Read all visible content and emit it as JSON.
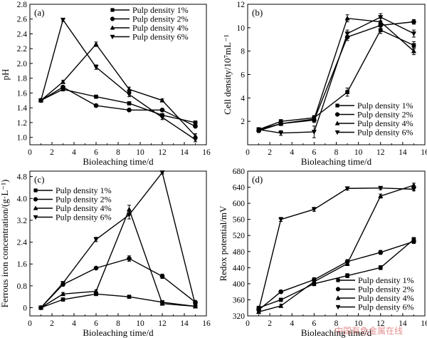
{
  "watermark": "中国有色金属在线",
  "chart_data": [
    {
      "id": "a",
      "type": "line",
      "panel_label": "(a)",
      "xlabel": "Bioleaching time/d",
      "ylabel": "pH",
      "xlim": [
        0,
        16
      ],
      "ylim": [
        0.9,
        2.8
      ],
      "xticks": [
        0,
        2,
        4,
        6,
        8,
        10,
        12,
        14,
        16
      ],
      "yticks": [
        1.0,
        1.2,
        1.4,
        1.6,
        1.8,
        2.0,
        2.2,
        2.4,
        2.6,
        2.8
      ],
      "ytick_labels": [
        "1.0",
        "1.2",
        "1.4",
        "1.6",
        "1.8",
        "2.0",
        "2.2",
        "2.4",
        "2.6",
        "2.8"
      ],
      "legend_position": "top-right",
      "x": [
        1,
        3,
        6,
        9,
        12,
        15
      ],
      "series": [
        {
          "name": "Pulp density 1%",
          "marker": "square",
          "values": [
            1.5,
            1.65,
            1.55,
            1.46,
            1.3,
            1.2
          ],
          "err": [
            0.02,
            0.02,
            0.02,
            0.02,
            0.02,
            0.02
          ]
        },
        {
          "name": "Pulp density 2%",
          "marker": "circle",
          "values": [
            1.5,
            1.68,
            1.43,
            1.37,
            1.37,
            1.15
          ],
          "err": [
            0.02,
            0.02,
            0.02,
            0.02,
            0.02,
            0.02
          ]
        },
        {
          "name": "Pulp density 4%",
          "marker": "triangle-up",
          "values": [
            1.5,
            1.75,
            2.26,
            1.65,
            1.5,
            1.02
          ],
          "err": [
            0.02,
            0.02,
            0.03,
            0.03,
            0.02,
            0.03
          ]
        },
        {
          "name": "Pulp density 6%",
          "marker": "triangle-down",
          "values": [
            1.5,
            2.59,
            1.95,
            1.58,
            1.27,
            0.97
          ],
          "err": [
            0.02,
            0.02,
            0.03,
            0.03,
            0.03,
            0.03
          ]
        }
      ]
    },
    {
      "id": "b",
      "type": "line",
      "panel_label": "(b)",
      "xlabel": "Bioleaching time/d",
      "ylabel": "Cell density/10⁷mL⁻¹",
      "xlim": [
        0,
        16
      ],
      "ylim": [
        0,
        12
      ],
      "xticks": [
        0,
        2,
        4,
        6,
        8,
        10,
        12,
        14,
        16
      ],
      "yticks": [
        2,
        4,
        6,
        8,
        10,
        12
      ],
      "ytick_labels": [
        "2",
        "4",
        "6",
        "8",
        "10",
        "12"
      ],
      "legend_position": "bottom-right",
      "x": [
        1,
        3,
        6,
        9,
        12,
        15
      ],
      "series": [
        {
          "name": "Pulp density 1%",
          "marker": "square",
          "values": [
            1.3,
            2.0,
            2.3,
            4.5,
            9.8,
            8.5
          ],
          "err": [
            0.15,
            0.15,
            0.2,
            0.35,
            0.3,
            0.3
          ]
        },
        {
          "name": "Pulp density 2%",
          "marker": "circle",
          "values": [
            1.2,
            1.8,
            2.1,
            9.2,
            10.2,
            10.5
          ],
          "err": [
            0.15,
            0.15,
            0.2,
            0.3,
            0.3,
            0.2
          ]
        },
        {
          "name": "Pulp density 4%",
          "marker": "triangle-up",
          "values": [
            1.3,
            1.8,
            2.2,
            10.8,
            10.5,
            8.0
          ],
          "err": [
            0.15,
            0.15,
            0.2,
            0.3,
            0.3,
            0.3
          ]
        },
        {
          "name": "Pulp density 6%",
          "marker": "triangle-down",
          "values": [
            1.3,
            1.0,
            1.1,
            9.5,
            10.9,
            9.5
          ],
          "err": [
            0.15,
            0.2,
            0.5,
            0.3,
            0.3,
            0.3
          ]
        }
      ]
    },
    {
      "id": "c",
      "type": "line",
      "panel_label": "(c)",
      "xlabel": "Bioleaching time/d",
      "ylabel": "Ferrous iron concentration/(g·L⁻¹)",
      "xlim": [
        0,
        16
      ],
      "ylim": [
        -0.3,
        5.0
      ],
      "xticks": [
        0,
        2,
        4,
        6,
        8,
        10,
        12,
        14,
        16
      ],
      "yticks": [
        0,
        0.8,
        1.6,
        2.4,
        3.2,
        4.0,
        4.8
      ],
      "ytick_labels": [
        "0",
        "0.8",
        "1.6",
        "2.4",
        "3.2",
        "4.0",
        "4.8"
      ],
      "legend_position": "top-left",
      "x": [
        1,
        3,
        6,
        9,
        12,
        15
      ],
      "series": [
        {
          "name": "Pulp density 1%",
          "marker": "square",
          "values": [
            0.0,
            0.3,
            0.5,
            0.4,
            0.2,
            0.05
          ],
          "err": [
            0.03,
            0.03,
            0.04,
            0.04,
            0.04,
            0.03
          ]
        },
        {
          "name": "Pulp density 2%",
          "marker": "circle",
          "values": [
            0.0,
            0.85,
            1.45,
            1.8,
            1.15,
            0.2
          ],
          "err": [
            0.03,
            0.05,
            0.05,
            0.1,
            0.08,
            0.03
          ]
        },
        {
          "name": "Pulp density 4%",
          "marker": "triangle-up",
          "values": [
            0.0,
            0.5,
            0.6,
            3.6,
            0.15,
            0.05
          ],
          "err": [
            0.03,
            0.05,
            0.05,
            0.15,
            0.05,
            0.03
          ]
        },
        {
          "name": "Pulp density 6%",
          "marker": "triangle-down",
          "values": [
            0.0,
            0.9,
            2.5,
            3.4,
            4.95,
            0.1
          ],
          "err": [
            0.03,
            0.05,
            0.08,
            0.15,
            0.05,
            0.03
          ]
        }
      ]
    },
    {
      "id": "d",
      "type": "line",
      "panel_label": "(d)",
      "xlabel": "Bioleaching time/d",
      "ylabel": "Redox potential/mV",
      "xlim": [
        0,
        16
      ],
      "ylim": [
        320,
        680
      ],
      "xticks": [
        0,
        2,
        4,
        6,
        8,
        10,
        12,
        14,
        16
      ],
      "yticks": [
        320,
        360,
        400,
        440,
        480,
        520,
        560,
        600,
        640,
        680
      ],
      "ytick_labels": [
        "320",
        "360",
        "400",
        "440",
        "480",
        "520",
        "560",
        "600",
        "640",
        "680"
      ],
      "legend_position": "bottom-right",
      "x": [
        1,
        3,
        6,
        9,
        12,
        15
      ],
      "series": [
        {
          "name": "Pulp density 1%",
          "marker": "square",
          "values": [
            340,
            360,
            400,
            420,
            440,
            510
          ],
          "err": [
            4,
            4,
            5,
            5,
            5,
            5
          ]
        },
        {
          "name": "Pulp density 2%",
          "marker": "circle",
          "values": [
            335,
            380,
            410,
            455,
            478,
            505
          ],
          "err": [
            4,
            4,
            5,
            5,
            5,
            5
          ]
        },
        {
          "name": "Pulp density 4%",
          "marker": "triangle-up",
          "values": [
            330,
            345,
            405,
            450,
            618,
            645
          ],
          "err": [
            4,
            4,
            5,
            5,
            5,
            5
          ]
        },
        {
          "name": "Pulp density 6%",
          "marker": "triangle-down",
          "values": [
            335,
            560,
            585,
            637,
            638,
            635
          ],
          "err": [
            4,
            5,
            5,
            4,
            4,
            4
          ]
        }
      ]
    }
  ]
}
